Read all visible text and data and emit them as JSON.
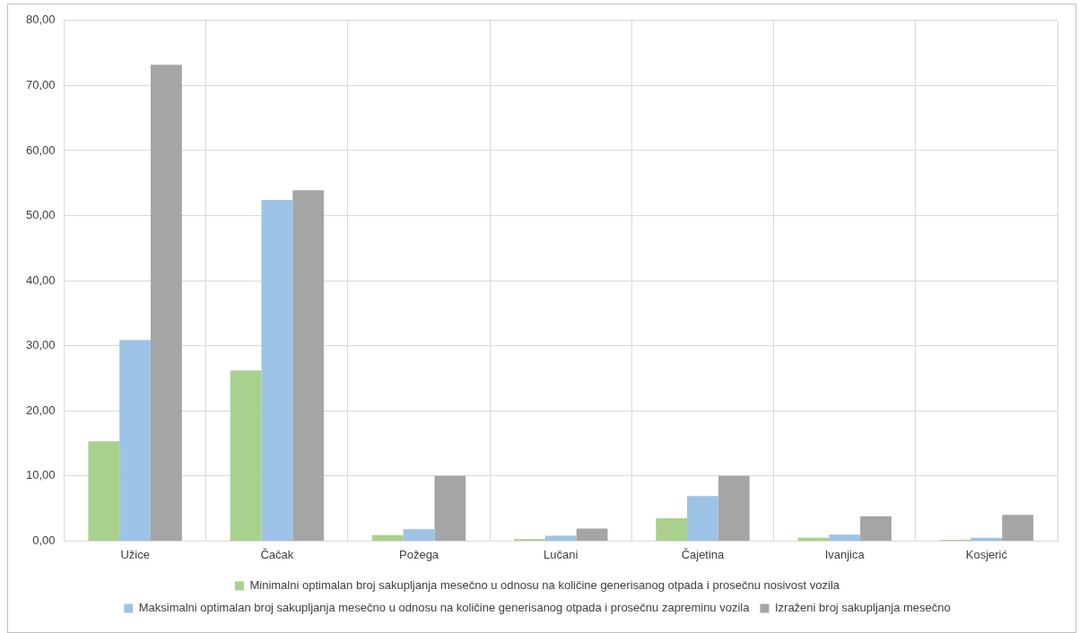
{
  "chart_data": {
    "type": "bar",
    "categories": [
      "Užice",
      "Čačak",
      "Požega",
      "Lučani",
      "Čajetina",
      "Ivanjica",
      "Kosjerić"
    ],
    "series": [
      {
        "name": "Minimalni optimalan broj sakupljanja mesečno u odnosu na količine generisanog otpada i prosečnu nosivost vozila",
        "color": "#a9d18e",
        "values": [
          15.3,
          26.2,
          0.9,
          0.3,
          3.5,
          0.5,
          0.2
        ]
      },
      {
        "name": "Maksimalni optimalan broj sakupljanja mesečno u odnosu na količine generisanog otpada i prosečnu zapreminu vozila",
        "color": "#9dc3e6",
        "values": [
          30.9,
          52.4,
          1.8,
          0.8,
          6.9,
          1.0,
          0.5
        ]
      },
      {
        "name": "Izraženi broj sakupljanja mesečno",
        "color": "#a5a5a5",
        "values": [
          73.2,
          53.9,
          10,
          1.9,
          10,
          3.8,
          4
        ]
      }
    ],
    "ylim": [
      0,
      80
    ],
    "yticks": [
      {
        "value": 0,
        "label": "0,00"
      },
      {
        "value": 10,
        "label": "10,00"
      },
      {
        "value": 20,
        "label": "20,00"
      },
      {
        "value": 30,
        "label": "30,00"
      },
      {
        "value": 40,
        "label": "40,00"
      },
      {
        "value": 50,
        "label": "50,00"
      },
      {
        "value": 60,
        "label": "60,00"
      },
      {
        "value": 70,
        "label": "70,00"
      },
      {
        "value": 80,
        "label": "80,00"
      }
    ],
    "grid": true,
    "legend": "bottom"
  }
}
